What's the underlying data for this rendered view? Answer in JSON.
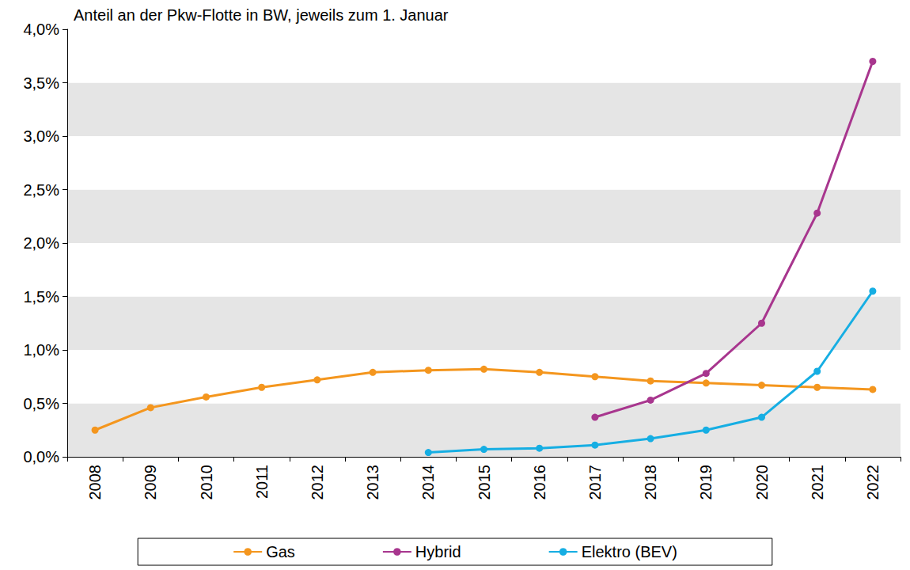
{
  "chart_data": {
    "type": "line",
    "title": "Anteil an der Pkw-Flotte in BW, jeweils zum 1. Januar",
    "categories": [
      "2008",
      "2009",
      "2010",
      "2011",
      "2012",
      "2013",
      "2014",
      "2015",
      "2016",
      "2017",
      "2018",
      "2019",
      "2020",
      "2021",
      "2022"
    ],
    "series": [
      {
        "name": "Gas",
        "color": "#f4961e",
        "values": [
          0.25,
          0.46,
          0.56,
          0.65,
          0.72,
          0.79,
          0.81,
          0.82,
          0.79,
          0.75,
          0.71,
          0.69,
          0.67,
          0.65,
          0.63
        ]
      },
      {
        "name": "Hybrid",
        "color": "#a8368e",
        "values": [
          null,
          null,
          null,
          null,
          null,
          null,
          null,
          null,
          null,
          0.37,
          0.53,
          0.78,
          1.25,
          2.28,
          3.7
        ]
      },
      {
        "name": "Elektro (BEV)",
        "color": "#16aee3",
        "values": [
          null,
          null,
          null,
          null,
          null,
          null,
          0.04,
          0.07,
          0.08,
          0.11,
          0.17,
          0.25,
          0.37,
          0.8,
          1.55
        ]
      }
    ],
    "ylim": [
      0,
      4
    ],
    "yticks": [
      {
        "value": 0,
        "label": "0,0%"
      },
      {
        "value": 0.5,
        "label": "0,5%"
      },
      {
        "value": 1,
        "label": "1,0%"
      },
      {
        "value": 1.5,
        "label": "1,5%"
      },
      {
        "value": 2,
        "label": "2,0%"
      },
      {
        "value": 2.5,
        "label": "2,5%"
      },
      {
        "value": 3,
        "label": "3,0%"
      },
      {
        "value": 3.5,
        "label": "3,5%"
      },
      {
        "value": 4,
        "label": "4,0%"
      }
    ],
    "grid": true,
    "legend": "bottom",
    "marker": "circle",
    "line_style": "solid"
  }
}
